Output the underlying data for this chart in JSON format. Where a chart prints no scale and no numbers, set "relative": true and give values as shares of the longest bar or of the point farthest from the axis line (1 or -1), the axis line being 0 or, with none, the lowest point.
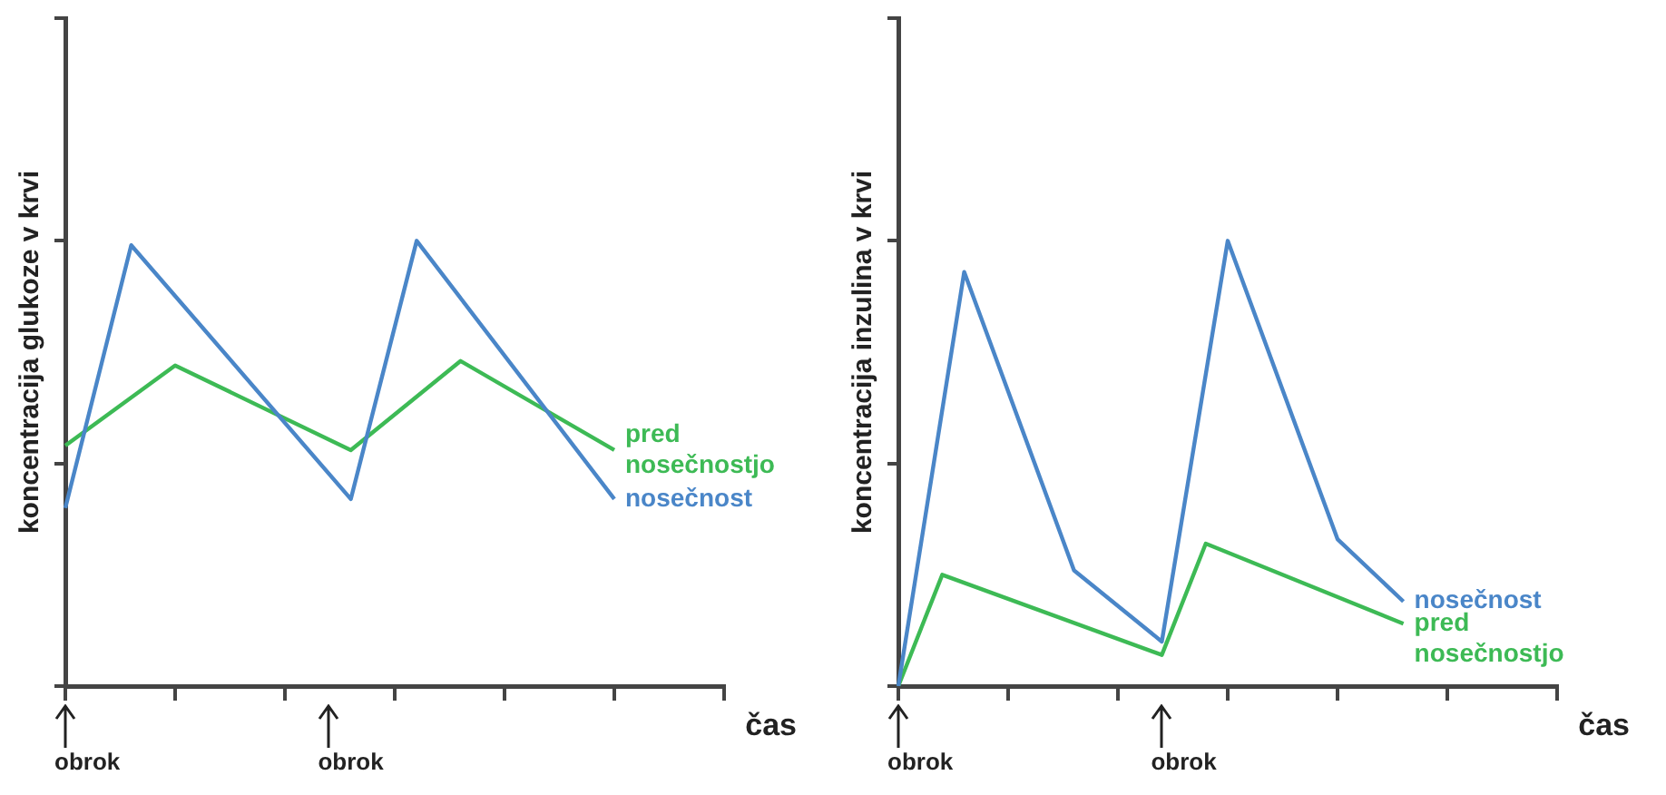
{
  "chart_data": [
    {
      "type": "line",
      "relative": true,
      "ylabel": "koncentracija glukoze v krvi",
      "xlabel": "čas",
      "categories": [
        null,
        null,
        null,
        null,
        null,
        null,
        null,
        null,
        null,
        null,
        null,
        null,
        null,
        null,
        null,
        null,
        null,
        null,
        null,
        null,
        null,
        null,
        null,
        null,
        null,
        null,
        null,
        null,
        null,
        null,
        null
      ],
      "tick_labels": false,
      "marker": "none",
      "annotations": [
        "obrok",
        "obrok"
      ],
      "series": [
        {
          "name": "nosečnost",
          "color": "#4a86c8",
          "values": [
            0.4,
            null,
            null,
            0.99,
            null,
            null,
            null,
            null,
            null,
            null,
            null,
            null,
            null,
            0.42,
            null,
            null,
            1,
            null,
            null,
            null,
            null,
            null,
            null,
            null,
            null,
            0.42,
            null,
            null,
            null,
            null,
            null
          ]
        },
        {
          "name": "pred nosečnostjo",
          "color": "#3dba55",
          "values": [
            0.54,
            null,
            null,
            null,
            null,
            0.72,
            null,
            null,
            null,
            null,
            null,
            null,
            null,
            0.53,
            null,
            null,
            null,
            null,
            0.73,
            null,
            null,
            null,
            null,
            null,
            null,
            0.53,
            null,
            null,
            null,
            null,
            null
          ]
        }
      ]
    },
    {
      "type": "line",
      "relative": true,
      "ylabel": "koncentracija inzulina v krvi",
      "xlabel": "čas",
      "categories": [
        null,
        null,
        null,
        null,
        null,
        null,
        null,
        null,
        null,
        null,
        null,
        null,
        null,
        null,
        null,
        null,
        null,
        null,
        null,
        null,
        null,
        null,
        null,
        null,
        null,
        null,
        null,
        null,
        null,
        null,
        null
      ],
      "tick_labels": false,
      "marker": "none",
      "annotations": [
        "obrok",
        "obrok"
      ],
      "series": [
        {
          "name": "nosečnost",
          "color": "#4a86c8",
          "values": [
            0,
            null,
            null,
            0.93,
            null,
            null,
            null,
            null,
            0.26,
            null,
            null,
            null,
            0.1,
            null,
            null,
            1,
            null,
            null,
            null,
            null,
            0.33,
            null,
            null,
            0.19,
            null,
            null,
            null,
            null,
            null,
            null,
            null
          ]
        },
        {
          "name": "pred nosečnostjo",
          "color": "#3dba55",
          "values": [
            0,
            null,
            0.25,
            null,
            null,
            null,
            null,
            null,
            null,
            null,
            null,
            null,
            0.07,
            null,
            0.32,
            null,
            null,
            null,
            null,
            null,
            null,
            null,
            null,
            0.14,
            null,
            null,
            null,
            null,
            null,
            null,
            null
          ]
        }
      ]
    }
  ]
}
